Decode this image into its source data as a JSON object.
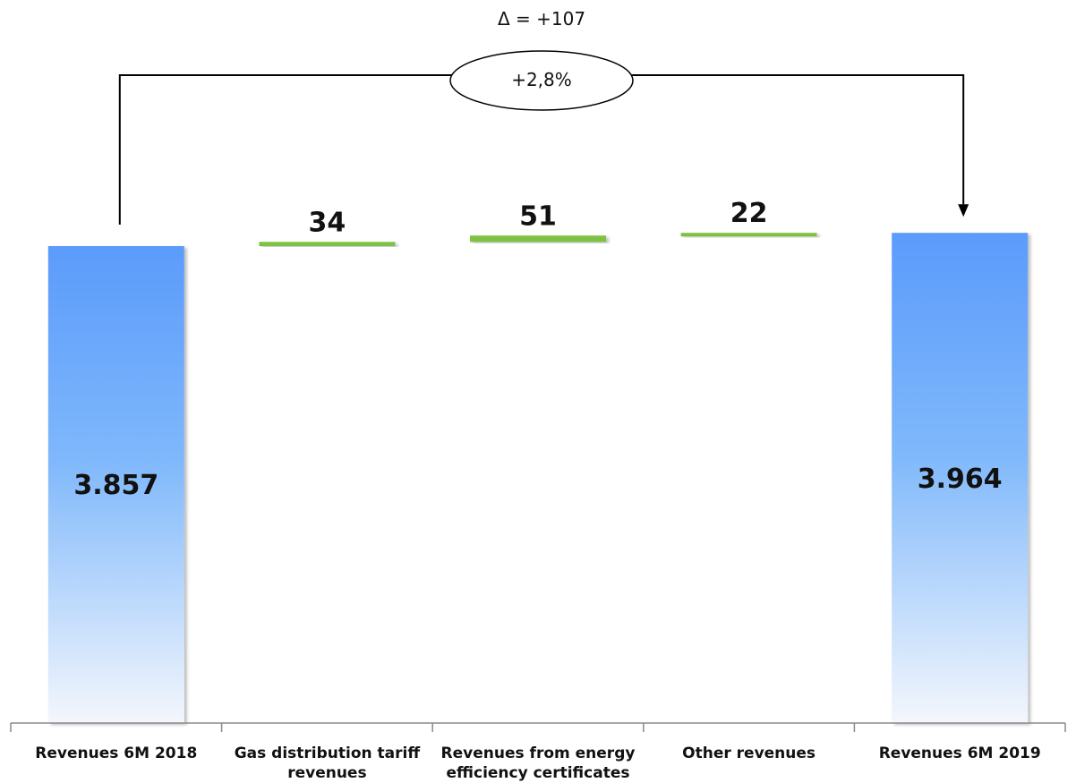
{
  "chart_data": {
    "type": "bar",
    "subtype": "waterfall",
    "categories": [
      [
        "Revenues 6M 2018"
      ],
      [
        "Gas distribution tariff",
        "revenues"
      ],
      [
        "Revenues from energy",
        "efficiency certificates"
      ],
      [
        "Other revenues"
      ],
      [
        "Revenues 6M 2019"
      ]
    ],
    "values": [
      3857,
      34,
      51,
      22,
      3964
    ],
    "value_labels": [
      "3.857",
      "34",
      "51",
      "22",
      "3.964"
    ],
    "bar_kinds": [
      "total",
      "increase",
      "increase",
      "increase",
      "total"
    ],
    "delta": {
      "label": "Δ = +107",
      "value": 107
    },
    "percent_change": {
      "label": "+2,8%",
      "value": 2.8
    },
    "colors": {
      "total_top": "#5b9bfb",
      "total_bottom": "#f4f7fc",
      "increase": "#7dc242",
      "axis": "#8a8a8a",
      "connector": "#000000"
    },
    "title": "",
    "xlabel": "",
    "ylabel": "",
    "grid": false,
    "legend": "none"
  }
}
